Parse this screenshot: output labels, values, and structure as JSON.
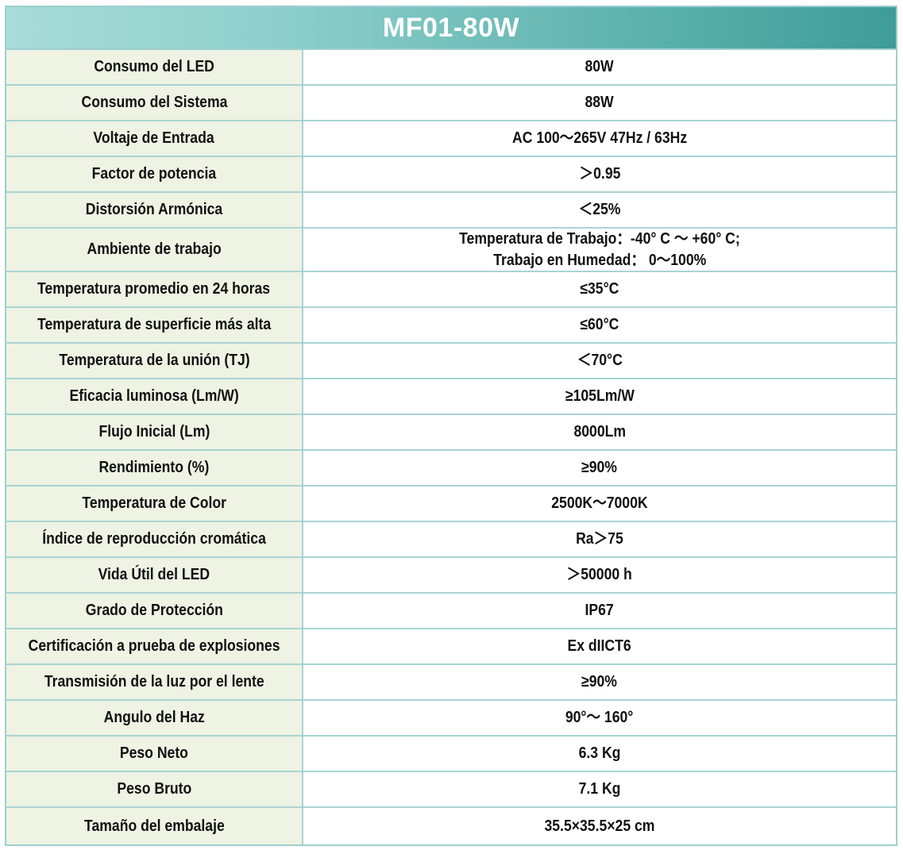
{
  "title": "MF01-80W",
  "rows": [
    {
      "label": "Consumo del LED",
      "value": "80W"
    },
    {
      "label": "Consumo del Sistema",
      "value": "88W"
    },
    {
      "label": "Voltaje de Entrada",
      "value": "AC 100～265V  47Hz / 63Hz"
    },
    {
      "label": "Factor de potencia",
      "value": "＞0.95"
    },
    {
      "label": "Distorsión Armónica",
      "value": "＜25%"
    },
    {
      "label": "Ambiente de trabajo",
      "value": "Temperatura de Trabajo：-40° C ～ +60° C;",
      "value2": "Trabajo en Humedad： 0～100%"
    },
    {
      "label": "Temperatura promedio en 24 horas",
      "value": "≤35°C"
    },
    {
      "label": "Temperatura de superficie más alta",
      "value": "≤60°C"
    },
    {
      "label": "Temperatura de la unión (TJ)",
      "value": "＜70°C"
    },
    {
      "label": "Eficacia luminosa (Lm/W)",
      "value": "≥105Lm/W"
    },
    {
      "label": "Flujo Inicial (Lm)",
      "value": "8000Lm"
    },
    {
      "label": "Rendimiento (%)",
      "value": "≥90%"
    },
    {
      "label": "Temperatura de Color",
      "value": "2500K～7000K"
    },
    {
      "label": "Índice de reproducción cromática",
      "value": "Ra＞75"
    },
    {
      "label": "Vida Útil del LED",
      "value": "＞50000 h"
    },
    {
      "label": "Grado de Protección",
      "value": "IP67"
    },
    {
      "label": "Certificación a prueba de explosiones",
      "value": "Ex dIICT6"
    },
    {
      "label": "Transmisión de la luz por el lente",
      "value": "≥90%"
    },
    {
      "label": "Angulo del Haz",
      "value": "90°～ 160°"
    },
    {
      "label": "Peso Neto",
      "value": "6.3 Kg"
    },
    {
      "label": "Peso Bruto",
      "value": "7.1 Kg"
    },
    {
      "label": "Tamaño del embalaje",
      "value": "35.5×35.5×25 cm"
    }
  ]
}
